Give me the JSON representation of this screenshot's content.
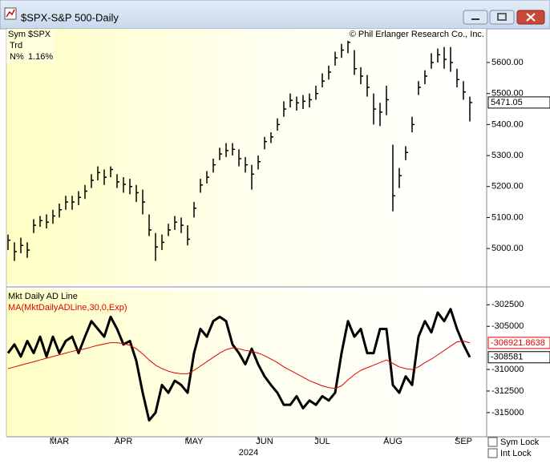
{
  "window": {
    "title": "$SPX-S&P 500-Daily"
  },
  "info": {
    "sym_label": "Sym",
    "sym": "$SPX",
    "trd_label": "Trd",
    "n_label": "N%",
    "n_value": "1.16%"
  },
  "copyright": "© Phil Erlanger Research Co., Inc.",
  "controls": [
    "Sym Lock",
    "Int Lock"
  ],
  "chart_data": [
    {
      "type": "ohlc",
      "color": "#000000",
      "high": [
        5045,
        5020,
        5035,
        5020,
        5095,
        5105,
        5110,
        5125,
        5145,
        5170,
        5170,
        5185,
        5205,
        5240,
        5265,
        5255,
        5265,
        5240,
        5230,
        5225,
        5205,
        5190,
        5110,
        5050,
        5045,
        5080,
        5105,
        5100,
        5075,
        5150,
        5225,
        5250,
        5290,
        5325,
        5340,
        5340,
        5320,
        5295,
        5270,
        5300,
        5360,
        5375,
        5420,
        5475,
        5500,
        5490,
        5495,
        5500,
        5525,
        5565,
        5590,
        5635,
        5660,
        5670,
        5640,
        5585,
        5560,
        5500,
        5470,
        5525,
        5335,
        5260,
        5330,
        5425,
        5540,
        5575,
        5630,
        5645,
        5650,
        5650,
        5580,
        5540,
        5490
      ],
      "low": [
        4995,
        4960,
        4985,
        4970,
        5050,
        5070,
        5065,
        5080,
        5100,
        5125,
        5125,
        5140,
        5160,
        5195,
        5220,
        5205,
        5230,
        5195,
        5180,
        5175,
        5150,
        5110,
        5040,
        4960,
        4995,
        5040,
        5060,
        5050,
        5010,
        5100,
        5180,
        5210,
        5245,
        5285,
        5295,
        5300,
        5265,
        5245,
        5190,
        5255,
        5320,
        5340,
        5380,
        5425,
        5455,
        5445,
        5450,
        5455,
        5480,
        5520,
        5545,
        5590,
        5615,
        5630,
        5560,
        5530,
        5490,
        5400,
        5395,
        5430,
        5120,
        5195,
        5285,
        5375,
        5495,
        5530,
        5580,
        5600,
        5580,
        5570,
        5520,
        5480,
        5410
      ],
      "close": [
        5027,
        4990,
        5010,
        4995,
        5075,
        5090,
        5085,
        5105,
        5125,
        5150,
        5150,
        5165,
        5185,
        5220,
        5245,
        5230,
        5255,
        5215,
        5207,
        5200,
        5180,
        5150,
        5060,
        5005,
        5020,
        5060,
        5085,
        5075,
        5030,
        5130,
        5205,
        5230,
        5270,
        5305,
        5316,
        5320,
        5290,
        5270,
        5240,
        5280,
        5345,
        5360,
        5400,
        5450,
        5478,
        5470,
        5475,
        5480,
        5500,
        5540,
        5569,
        5615,
        5640,
        5665,
        5580,
        5556,
        5520,
        5450,
        5440,
        5480,
        5170,
        5235,
        5310,
        5400,
        5520,
        5556,
        5600,
        5625,
        5610,
        5600,
        5545,
        5505,
        5471.05
      ],
      "ylim": [
        4884,
        5706
      ],
      "yticks": [
        {
          "value": 5000,
          "label": "5000.00"
        },
        {
          "value": 5100,
          "label": "5100.00"
        },
        {
          "value": 5200,
          "label": "5200.00"
        },
        {
          "value": 5300,
          "label": "5300.00"
        },
        {
          "value": 5400,
          "label": "5400.00"
        },
        {
          "value": 5500,
          "label": "5500.00"
        },
        {
          "value": 5600,
          "label": "5600.00"
        }
      ]
    },
    {
      "type": "line",
      "categories": [
        null,
        null,
        null,
        null,
        null,
        null,
        null,
        null,
        "MAR",
        null,
        null,
        null,
        null,
        null,
        null,
        null,
        null,
        null,
        "APR",
        null,
        null,
        null,
        null,
        null,
        null,
        null,
        null,
        null,
        null,
        "MAY",
        null,
        null,
        null,
        null,
        null,
        null,
        null,
        null,
        null,
        null,
        "JUN",
        null,
        null,
        null,
        null,
        null,
        null,
        null,
        null,
        "JUL",
        null,
        null,
        null,
        null,
        null,
        null,
        null,
        null,
        null,
        null,
        "AUG",
        null,
        null,
        null,
        null,
        null,
        null,
        null,
        null,
        null,
        null,
        "SEP",
        null
      ],
      "xlabel": "2024",
      "series": [
        {
          "name": "Mkt Daily AD Line",
          "color": "#000000",
          "values": [
            -308100,
            -307100,
            -308500,
            -306700,
            -308100,
            -306200,
            -308500,
            -306200,
            -308100,
            -306700,
            -306200,
            -308100,
            -306200,
            -304400,
            -305300,
            -306200,
            -303900,
            -305300,
            -307100,
            -306700,
            -309000,
            -312700,
            -315900,
            -315000,
            -311800,
            -312700,
            -311300,
            -311800,
            -312700,
            -308100,
            -305300,
            -306200,
            -304400,
            -303900,
            -304400,
            -307100,
            -308100,
            -309400,
            -307600,
            -309400,
            -310800,
            -311800,
            -312700,
            -314100,
            -314100,
            -313100,
            -314500,
            -313600,
            -314100,
            -313100,
            -313600,
            -312700,
            -308100,
            -304400,
            -306200,
            -305300,
            -308100,
            -308100,
            -305300,
            -305300,
            -311800,
            -312700,
            -310800,
            -311800,
            -306200,
            -304400,
            -305700,
            -303400,
            -304400,
            -303000,
            -305300,
            -307100,
            -308581
          ]
        },
        {
          "name": "MA(MktDailyADLine,30,0,Exp)",
          "color": "#e00000",
          "values": [
            -309900,
            -309700,
            -309500,
            -309300,
            -309100,
            -308900,
            -308700,
            -308500,
            -308300,
            -308100,
            -307900,
            -307750,
            -307600,
            -307400,
            -307200,
            -307050,
            -306900,
            -306900,
            -307000,
            -307200,
            -307600,
            -308200,
            -308900,
            -309500,
            -309900,
            -310200,
            -310400,
            -310500,
            -310500,
            -310100,
            -309600,
            -309100,
            -308600,
            -308100,
            -307700,
            -307500,
            -307600,
            -307800,
            -307900,
            -308100,
            -308400,
            -308800,
            -309200,
            -309700,
            -310100,
            -310500,
            -310900,
            -311300,
            -311600,
            -311900,
            -312100,
            -312200,
            -311900,
            -311200,
            -310600,
            -310100,
            -309800,
            -309500,
            -309200,
            -308900,
            -309300,
            -309700,
            -309900,
            -310000,
            -309700,
            -309200,
            -308800,
            -308300,
            -307800,
            -307300,
            -306800,
            -306700,
            -306921.8638
          ]
        }
      ],
      "ylim": [
        -317800,
        -300800
      ],
      "yticks": [
        -315000,
        -312500,
        -310000,
        -305000,
        -302500
      ]
    }
  ]
}
